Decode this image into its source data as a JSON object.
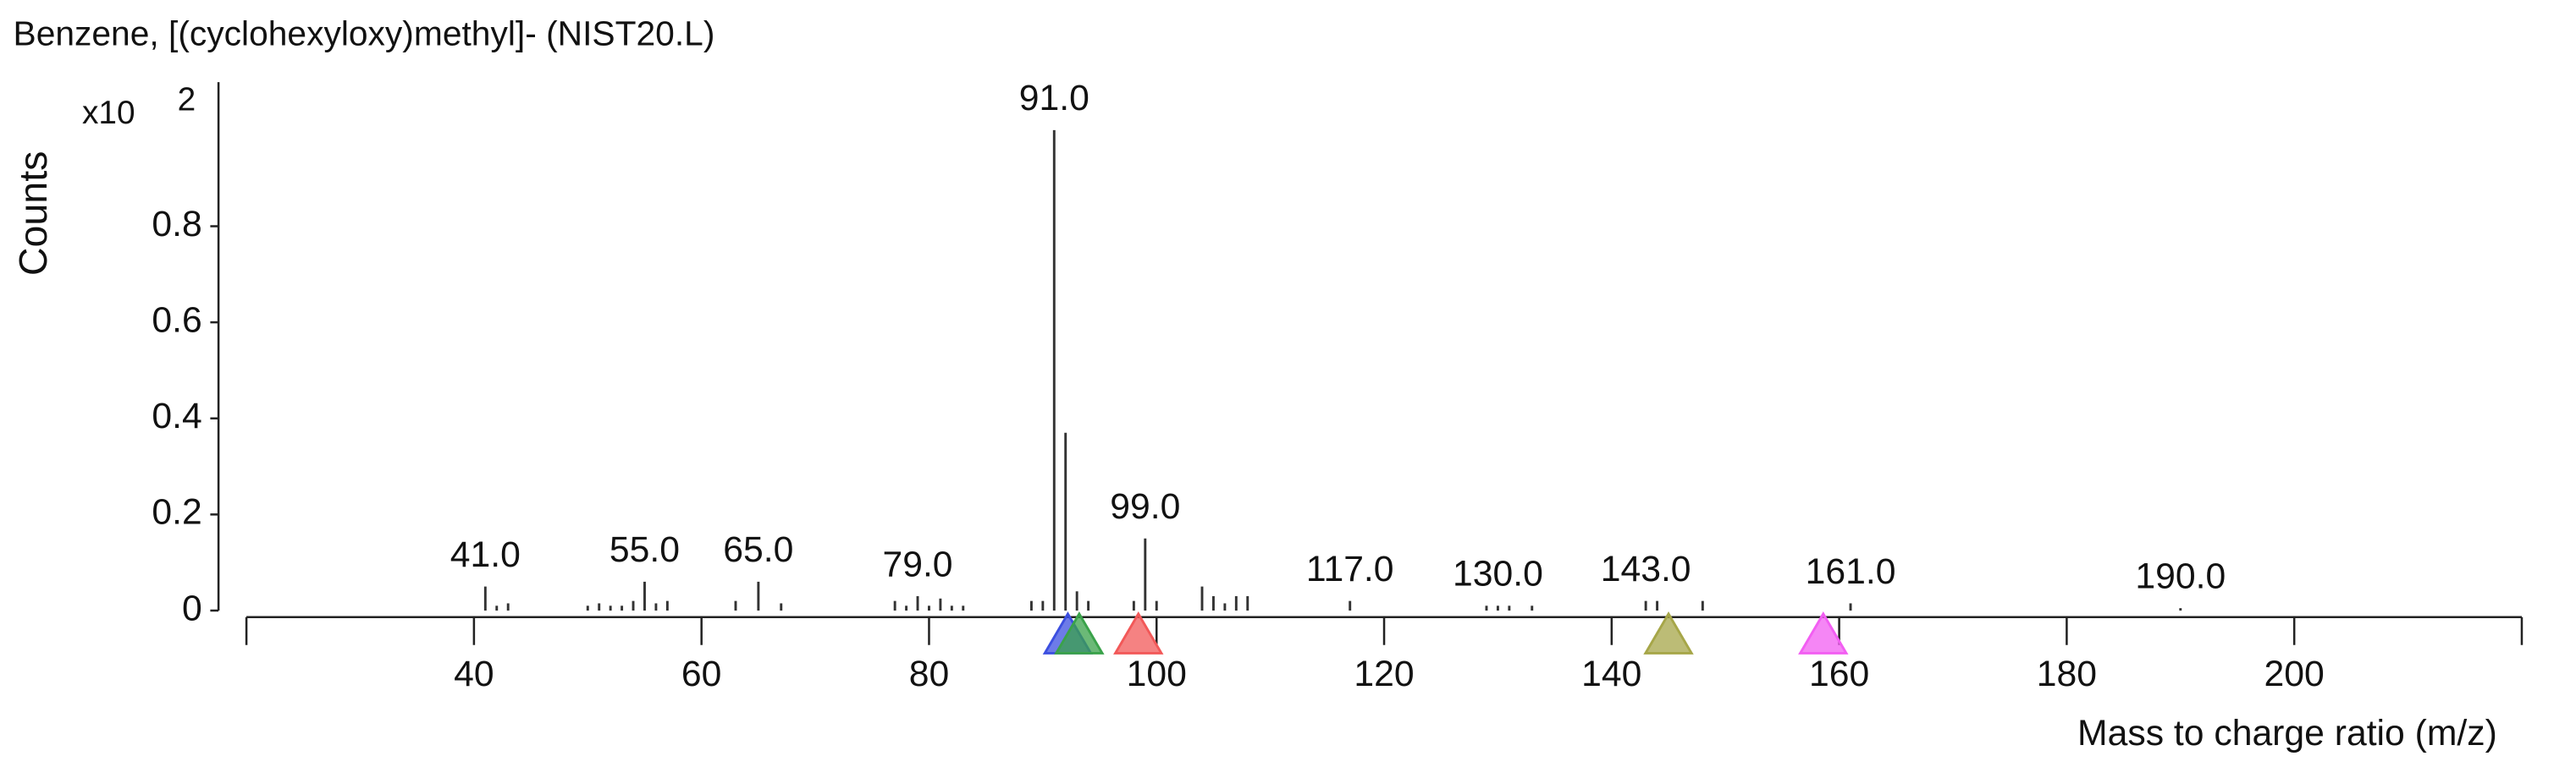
{
  "chart_data": {
    "type": "stick",
    "title": "Benzene, [(cyclohexyloxy)methyl]- (NIST20.L)",
    "xlabel": "Mass to charge ratio (m/z)",
    "ylabel": "Counts",
    "y_scale_label": "x10",
    "y_scale_exponent": "2",
    "color": "#333333",
    "x": [
      41,
      42,
      43,
      50,
      51,
      52,
      53,
      54,
      55,
      56,
      57,
      63,
      65,
      67,
      77,
      78,
      79,
      80,
      81,
      82,
      83,
      89,
      90,
      91,
      92,
      93,
      94,
      98,
      99,
      100,
      104,
      105,
      106,
      107,
      108,
      117,
      129,
      130,
      131,
      133,
      143,
      144,
      148,
      161,
      190
    ],
    "values": [
      0.05,
      0.01,
      0.015,
      0.01,
      0.015,
      0.01,
      0.01,
      0.02,
      0.06,
      0.015,
      0.02,
      0.02,
      0.06,
      0.015,
      0.02,
      0.01,
      0.03,
      0.01,
      0.025,
      0.01,
      0.01,
      0.02,
      0.02,
      1.0,
      0.37,
      0.04,
      0.02,
      0.02,
      0.15,
      0.02,
      0.05,
      0.03,
      0.015,
      0.03,
      0.03,
      0.02,
      0.01,
      0.01,
      0.01,
      0.01,
      0.02,
      0.02,
      0.02,
      0.015,
      0.005
    ],
    "peak_labels": [
      {
        "x": 41,
        "label": "41.0"
      },
      {
        "x": 55,
        "label": "55.0"
      },
      {
        "x": 65,
        "label": "65.0"
      },
      {
        "x": 79,
        "label": "79.0"
      },
      {
        "x": 91,
        "label": "91.0"
      },
      {
        "x": 99,
        "label": "99.0"
      },
      {
        "x": 117,
        "label": "117.0"
      },
      {
        "x": 130,
        "label": "130.0"
      },
      {
        "x": 143,
        "label": "143.0"
      },
      {
        "x": 161,
        "label": "161.0"
      },
      {
        "x": 190,
        "label": "190.0"
      }
    ],
    "markers": [
      {
        "x": 92.2,
        "color": "#3c4fe0"
      },
      {
        "x": 93.2,
        "color": "#3aa24a"
      },
      {
        "x": 98.4,
        "color": "#f25858"
      },
      {
        "x": 145,
        "color": "#a6a648"
      },
      {
        "x": 158.6,
        "color": "#f25ef2"
      }
    ],
    "xlim": [
      20,
      220
    ],
    "ylim": [
      0,
      1.1
    ],
    "xticks": [
      40,
      60,
      80,
      100,
      120,
      140,
      160,
      180,
      200
    ],
    "yticks": [
      0,
      0.2,
      0.4,
      0.6,
      0.8
    ]
  }
}
